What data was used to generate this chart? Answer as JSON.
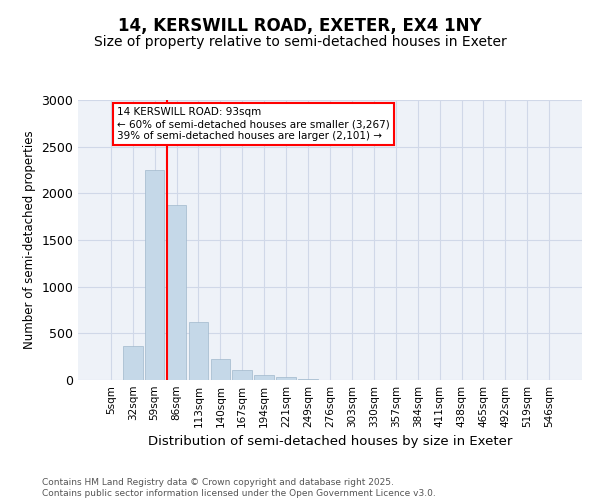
{
  "title": "14, KERSWILL ROAD, EXETER, EX4 1NY",
  "subtitle": "Size of property relative to semi-detached houses in Exeter",
  "xlabel": "Distribution of semi-detached houses by size in Exeter",
  "ylabel": "Number of semi-detached properties",
  "categories": [
    "5sqm",
    "32sqm",
    "59sqm",
    "86sqm",
    "113sqm",
    "140sqm",
    "167sqm",
    "194sqm",
    "221sqm",
    "249sqm",
    "276sqm",
    "303sqm",
    "330sqm",
    "357sqm",
    "384sqm",
    "411sqm",
    "438sqm",
    "465sqm",
    "492sqm",
    "519sqm",
    "546sqm"
  ],
  "values": [
    0,
    360,
    2250,
    1880,
    620,
    220,
    110,
    55,
    30,
    10,
    5,
    2,
    0,
    0,
    0,
    0,
    0,
    0,
    0,
    0,
    0
  ],
  "bar_color": "#c5d8e8",
  "bar_edge_color": "#a0b8cc",
  "vline_color": "red",
  "vline_index": 3,
  "annotation_text": "14 KERSWILL ROAD: 93sqm\n← 60% of semi-detached houses are smaller (3,267)\n39% of semi-detached houses are larger (2,101) →",
  "annotation_box_color": "white",
  "annotation_box_edge_color": "red",
  "ylim": [
    0,
    3000
  ],
  "yticks": [
    0,
    500,
    1000,
    1500,
    2000,
    2500,
    3000
  ],
  "grid_color": "#d0d8e8",
  "background_color": "#eef2f8",
  "footer_text": "Contains HM Land Registry data © Crown copyright and database right 2025.\nContains public sector information licensed under the Open Government Licence v3.0.",
  "title_fontsize": 12,
  "subtitle_fontsize": 10,
  "footer_fontsize": 6.5
}
